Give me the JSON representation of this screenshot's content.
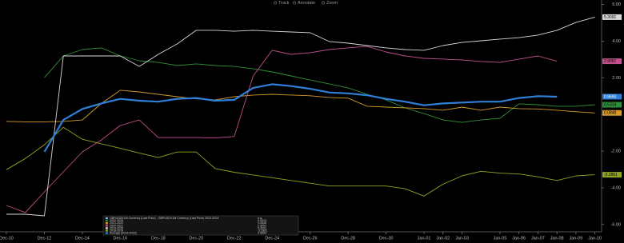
{
  "toolbar": [
    "Track",
    "Annotate",
    "Zoom"
  ],
  "chart_data": {
    "type": "line",
    "categories": [
      "Dec-10",
      null,
      "Dec-12",
      null,
      "Dec-14",
      null,
      "Dec-16",
      null,
      "Dec-18",
      null,
      "Dec-20",
      null,
      "Dec-22",
      null,
      "Dec-24",
      null,
      "Dec-26",
      null,
      "Dec-28",
      null,
      "Dec-30",
      null,
      "Jan-01",
      "Jan-02",
      "Jan-03",
      null,
      "Jan-05",
      "Jan-06",
      "Jan-07",
      "Jan-08",
      "Jan-09",
      "Jan-10"
    ],
    "ylim": [
      -6.4,
      6.2
    ],
    "yticks": [
      {
        "value": 6,
        "label": "6.00"
      },
      {
        "value": 4,
        "label": "4.00"
      },
      {
        "value": 2,
        "label": "2.00"
      },
      {
        "value": 0,
        "label": "0.00"
      },
      {
        "value": -2,
        "label": "-2.00"
      },
      {
        "value": -4,
        "label": "-4.00"
      },
      {
        "value": -6,
        "label": "-6.00"
      }
    ],
    "series": [
      {
        "name": "GBPUSDV1M Currency (Last Price) - GBPUSDV1M Currency (Last Price) 2023-2024",
        "color": "#8ab4e8",
        "last": "n.a.",
        "values": [
          null,
          null,
          null,
          null,
          null,
          null,
          null,
          null,
          null,
          null,
          null,
          null,
          null,
          null,
          null,
          null,
          null,
          null,
          null,
          null,
          null,
          null,
          null,
          null,
          null,
          null,
          null,
          null,
          null,
          null,
          null,
          null
        ]
      },
      {
        "name": "2022-2023",
        "color": "#2f8f3a",
        "last": 0.5314,
        "values": [
          null,
          null,
          2.01,
          3.19,
          3.54,
          3.63,
          3.19,
          2.93,
          2.84,
          2.67,
          2.76,
          2.67,
          2.62,
          2.49,
          2.32,
          2.1,
          1.88,
          1.67,
          1.45,
          1.1,
          0.79,
          0.36,
          0.05,
          -0.3,
          -0.43,
          -0.3,
          -0.21,
          0.58,
          0.53,
          0.45,
          0.45,
          0.5314
        ]
      },
      {
        "name": "2021-2022",
        "color": "#d49a2a",
        "last": 0.0848,
        "values": [
          -0.38,
          -0.4,
          -0.4,
          -0.38,
          -0.3,
          0.6,
          1.32,
          1.23,
          1.1,
          0.97,
          0.85,
          0.8,
          0.97,
          1.06,
          1.1,
          1.06,
          1.02,
          0.93,
          0.89,
          0.45,
          0.4,
          0.36,
          0.32,
          0.23,
          0.4,
          0.23,
          0.4,
          0.32,
          0.3,
          0.23,
          0.15,
          0.0848
        ]
      },
      {
        "name": "2020-2021",
        "color": "#c2508c",
        "last": 2.9051,
        "values": [
          -4.96,
          -5.35,
          -4.22,
          -3.13,
          -2.04,
          -1.39,
          -0.6,
          -0.3,
          -1.26,
          -1.26,
          -1.26,
          -1.28,
          -1.2,
          2.1,
          3.5,
          3.28,
          3.37,
          3.54,
          3.63,
          3.71,
          3.41,
          3.19,
          3.06,
          3.02,
          2.97,
          2.89,
          2.84,
          3.02,
          3.19,
          2.9051,
          null,
          null
        ]
      },
      {
        "name": "2019-2020",
        "color": "#d8d8d8",
        "last": 5.3091,
        "values": [
          -5.44,
          -5.44,
          -5.53,
          3.19,
          3.19,
          3.19,
          3.19,
          2.62,
          3.28,
          3.85,
          4.59,
          4.59,
          4.54,
          4.59,
          4.54,
          4.5,
          4.46,
          3.98,
          3.89,
          3.76,
          3.63,
          3.54,
          3.5,
          3.76,
          3.93,
          4.02,
          4.11,
          4.19,
          4.33,
          4.59,
          5.02,
          5.3091
        ]
      },
      {
        "name": "2018-2019",
        "color": "#8ea51f",
        "last": -3.2861,
        "values": [
          -3.01,
          -2.4,
          -1.65,
          -0.7,
          -1.35,
          -1.6,
          -1.85,
          -2.1,
          -2.35,
          -2.05,
          -2.05,
          -2.95,
          -3.15,
          -3.3,
          -3.45,
          -3.6,
          -3.75,
          -3.9,
          -3.9,
          -3.9,
          -3.9,
          -4.05,
          -4.45,
          -3.8,
          -3.35,
          -3.1,
          -3.2,
          -3.25,
          -3.4,
          -3.6,
          -3.35,
          -3.2861
        ]
      },
      {
        "name": "Average [2019-2023]",
        "color": "#2f7fd8",
        "last": 0.9693,
        "values": [
          null,
          null,
          -2.04,
          -0.3,
          0.3,
          0.6,
          0.85,
          0.75,
          0.7,
          0.85,
          0.9,
          0.75,
          0.8,
          1.45,
          1.65,
          1.55,
          1.4,
          1.2,
          1.15,
          1.05,
          0.85,
          0.7,
          0.5,
          0.6,
          0.65,
          0.7,
          0.7,
          0.9,
          1.0,
          0.9693,
          null,
          null
        ]
      }
    ]
  }
}
